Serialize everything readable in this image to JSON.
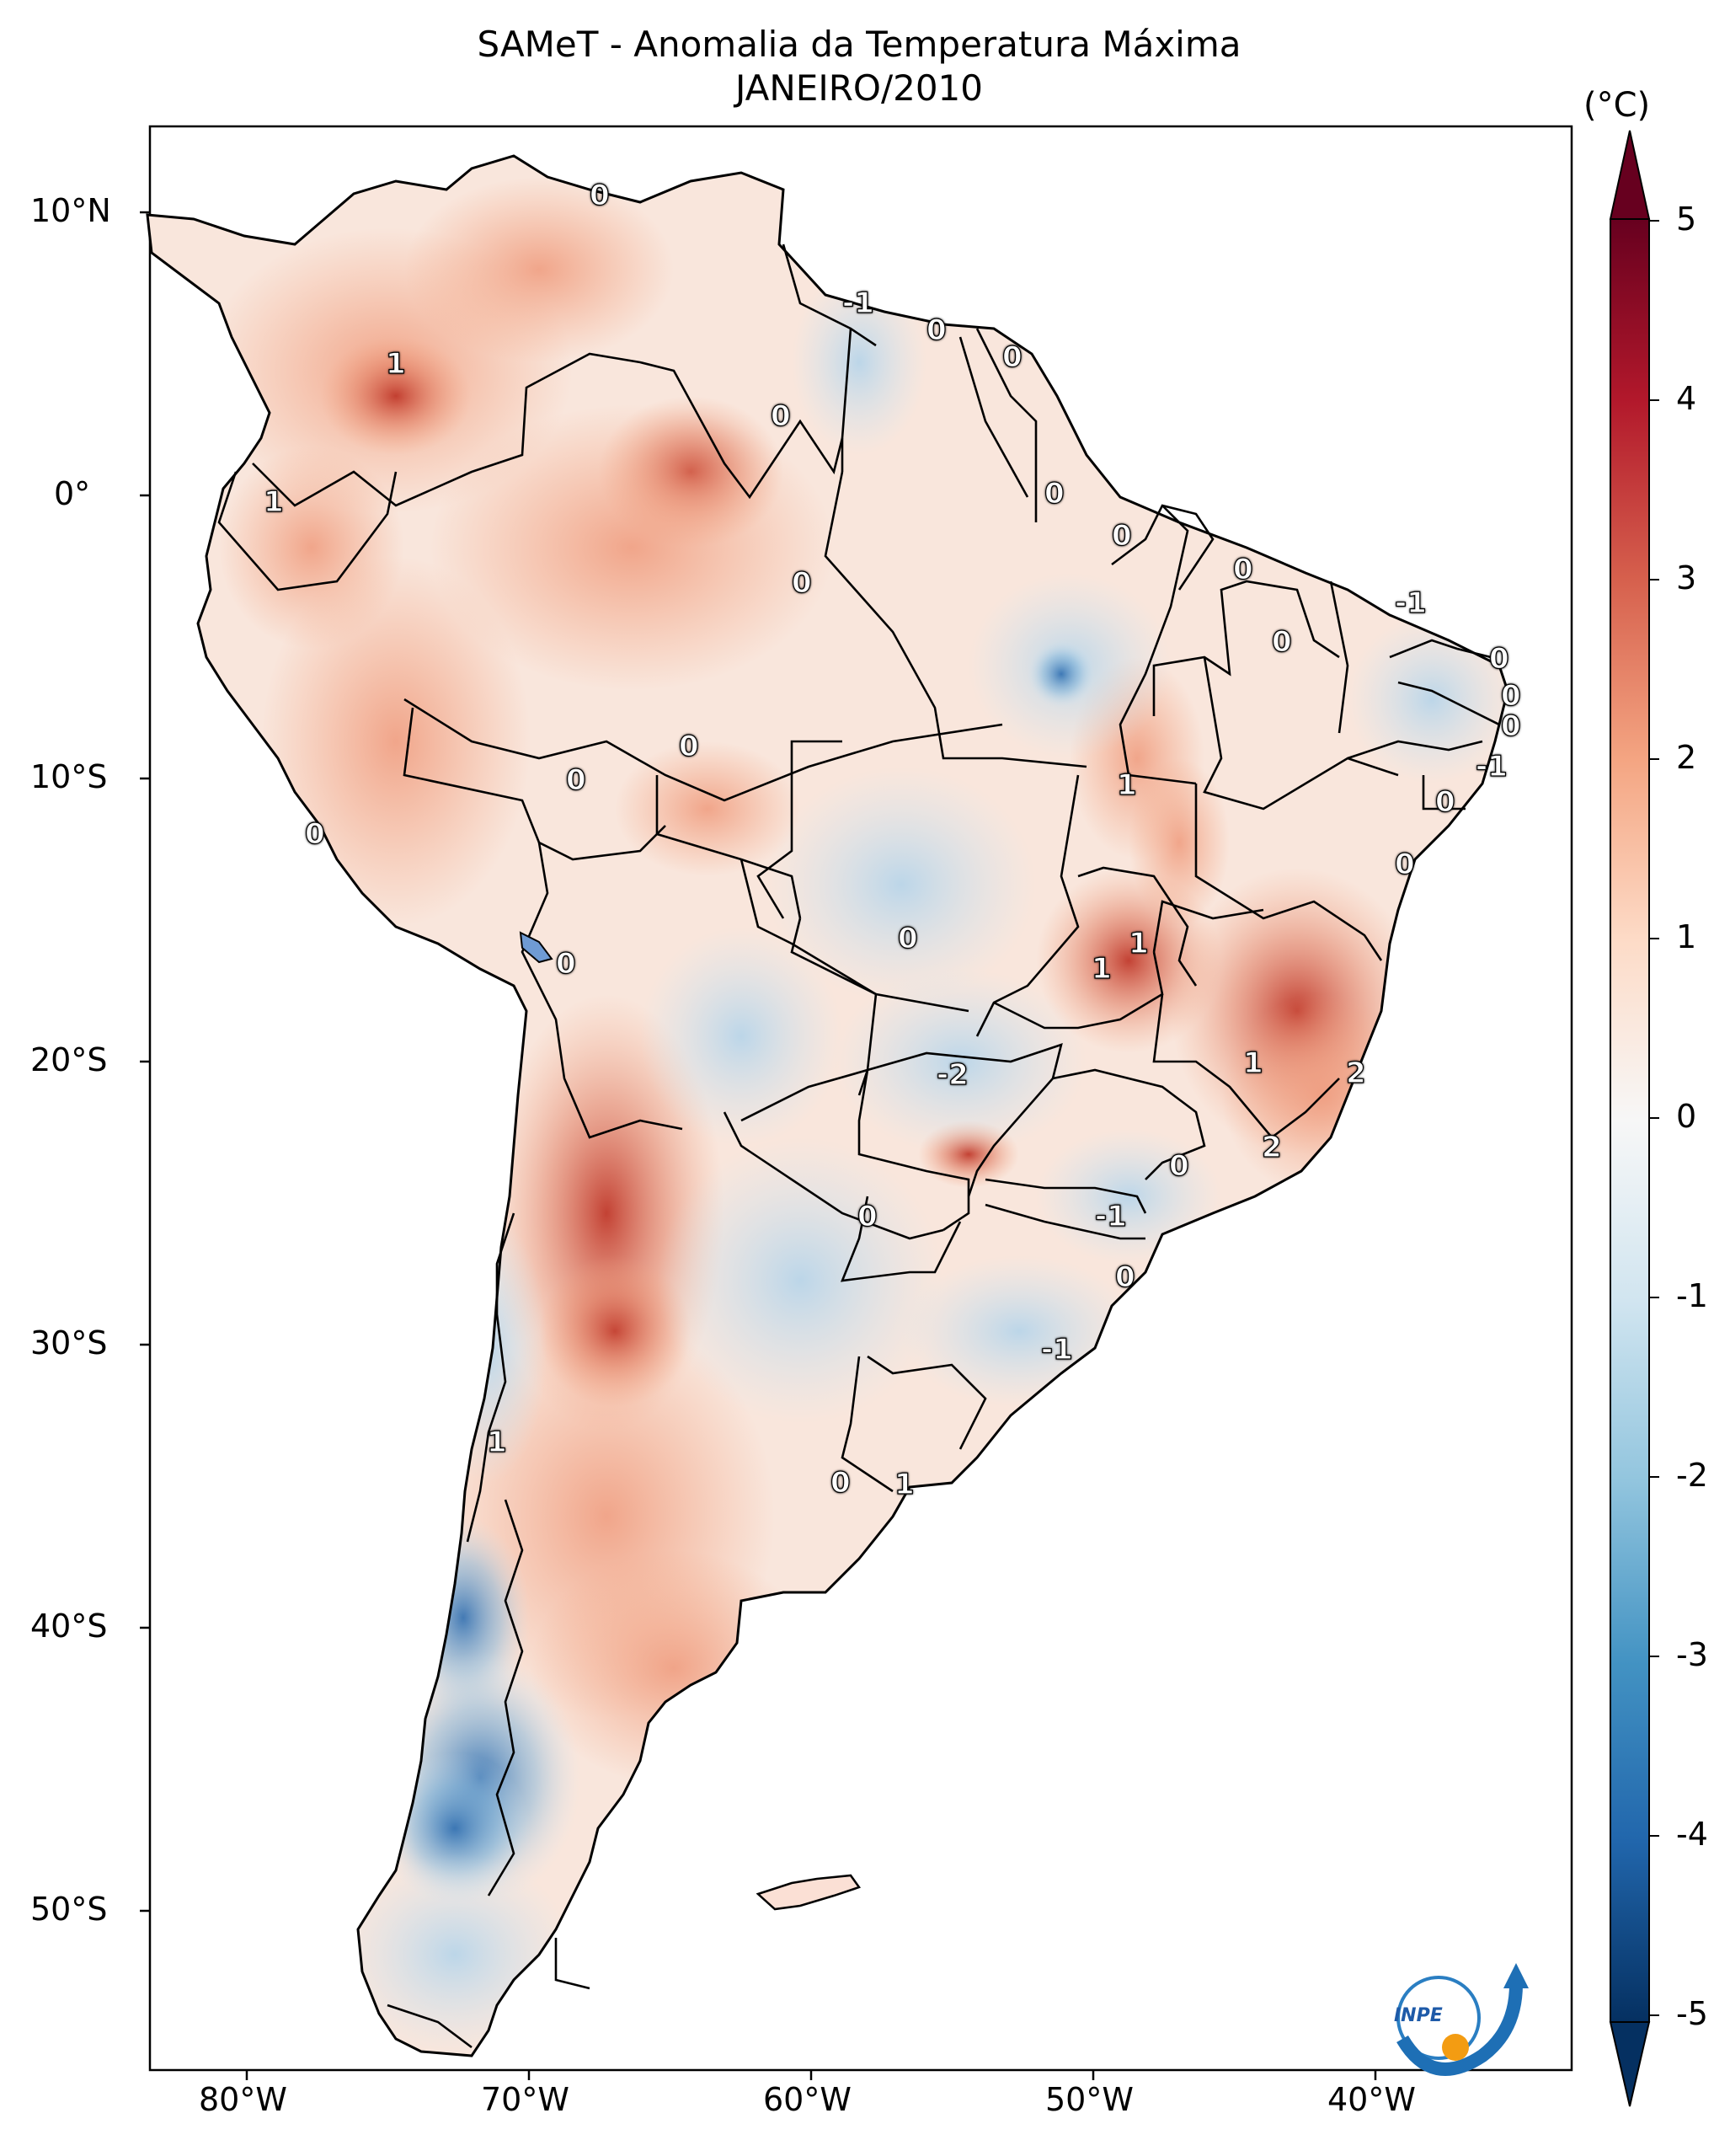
{
  "title": {
    "line1": "SAMeT - Anomalia da Temperatura Máxima",
    "line2": "JANEIRO/2010"
  },
  "colorbar": {
    "unit": "(°C)",
    "ticks": [
      "5",
      "4",
      "3",
      "2",
      "1",
      "0",
      "-1",
      "-2",
      "-3",
      "-4",
      "-5"
    ],
    "range": [
      -5,
      5
    ],
    "colors": [
      "#053061",
      "#2166ac",
      "#4393c3",
      "#92c5de",
      "#d1e5f0",
      "#f7f7f7",
      "#fddbc7",
      "#f4a582",
      "#d6604d",
      "#b2182b",
      "#67001f"
    ]
  },
  "axes": {
    "latitude_ticks": [
      "10°N",
      "0°",
      "10°S",
      "20°S",
      "30°S",
      "40°S",
      "50°S"
    ],
    "longitude_ticks": [
      "80°W",
      "70°W",
      "60°W",
      "50°W",
      "40°W"
    ]
  },
  "contour_labels": [
    "0",
    "-1",
    "0",
    "0",
    "1",
    "0",
    "1",
    "0",
    "0",
    "0",
    "0",
    "-1",
    "0",
    "0",
    "0",
    "0",
    "-1",
    "0",
    "0",
    "1",
    "0",
    "0",
    "0",
    "1",
    "1",
    "0",
    "-2",
    "1",
    "2",
    "2",
    "0",
    "0",
    "-1",
    "0",
    "1",
    "-1",
    "0",
    "1"
  ],
  "logo": {
    "text": "INPE"
  },
  "map": {
    "land_base_color": "#f9e9e1",
    "border_color": "#000000",
    "warm_anomaly_color": "#d6604d",
    "cold_anomaly_color": "#4393c3"
  }
}
